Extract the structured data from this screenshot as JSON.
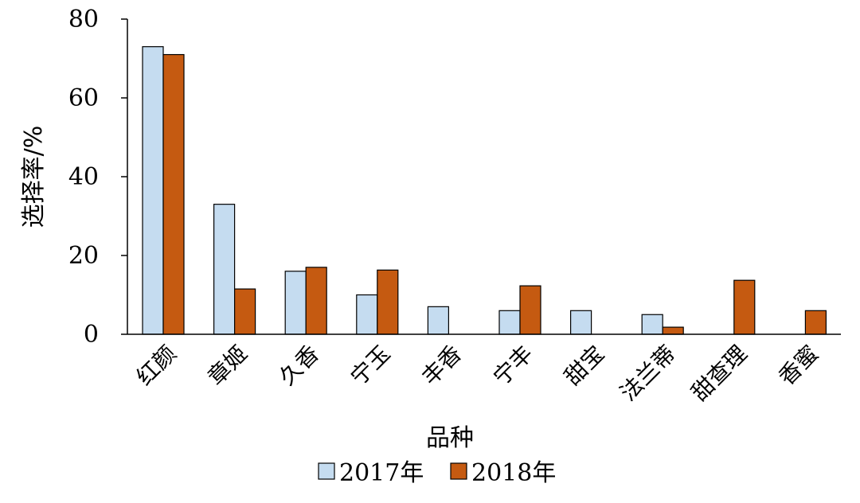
{
  "chart_data": {
    "type": "bar",
    "categories": [
      "红颜",
      "章姬",
      "久香",
      "宁玉",
      "丰香",
      "宁丰",
      "甜宝",
      "法兰蒂",
      "甜查理",
      "香蜜"
    ],
    "series": [
      {
        "name": "2017年",
        "color": "#c5dcf0",
        "values": [
          73,
          33,
          16,
          10,
          7,
          6,
          6,
          5,
          null,
          null
        ]
      },
      {
        "name": "2018年",
        "color": "#c55a11",
        "values": [
          71,
          11.5,
          17,
          16.3,
          null,
          12.3,
          null,
          1.8,
          13.7,
          6
        ]
      }
    ],
    "xlabel": "品种",
    "ylabel": "选择率/%",
    "ylim": [
      0,
      80
    ],
    "yticks": [
      0,
      20,
      40,
      60,
      80
    ],
    "grid": false,
    "legend_position": "bottom-center"
  }
}
